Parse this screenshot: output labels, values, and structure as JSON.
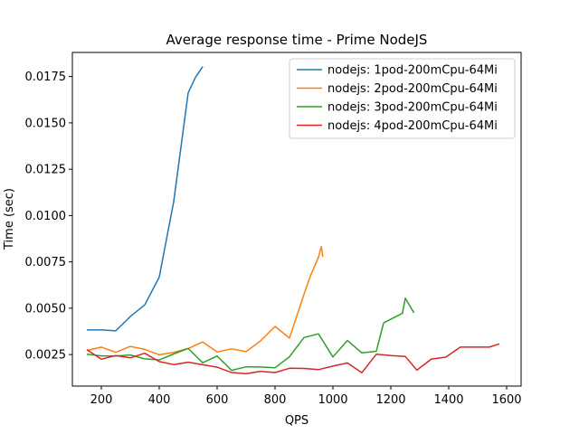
{
  "chart_data": {
    "type": "line",
    "title": "Average response time - Prime NodeJS",
    "xlabel": "QPS",
    "ylabel": "Time (sec)",
    "xlim": [
      100,
      1650
    ],
    "ylim": [
      0.0008,
      0.0188
    ],
    "xticks": [
      200,
      400,
      600,
      800,
      1000,
      1200,
      1400,
      1600
    ],
    "xtick_labels": [
      "200",
      "400",
      "600",
      "800",
      "1000",
      "1200",
      "1400",
      "1600"
    ],
    "yticks": [
      0.0025,
      0.005,
      0.0075,
      0.01,
      0.0125,
      0.015,
      0.0175
    ],
    "ytick_labels": [
      "0.0025",
      "0.0050",
      "0.0075",
      "0.0100",
      "0.0125",
      "0.0150",
      "0.0175"
    ],
    "grid": false,
    "legend_position": "top-right",
    "series": [
      {
        "name": "nodejs: 1pod-200mCpu-64Mi",
        "color": "#1f77b4",
        "x": [
          150,
          200,
          250,
          300,
          350,
          400,
          450,
          500,
          525,
          550
        ],
        "y": [
          0.00383,
          0.00383,
          0.00378,
          0.00455,
          0.00518,
          0.00668,
          0.01075,
          0.01662,
          0.01745,
          0.01803
        ]
      },
      {
        "name": "nodejs: 2pod-200mCpu-64Mi",
        "color": "#ff7f0e",
        "x": [
          150,
          200,
          250,
          300,
          350,
          400,
          450,
          500,
          550,
          600,
          650,
          700,
          750,
          800,
          850,
          900,
          925,
          950,
          960,
          965
        ],
        "y": [
          0.00272,
          0.0029,
          0.00262,
          0.00294,
          0.00278,
          0.00249,
          0.00262,
          0.00283,
          0.00318,
          0.00264,
          0.00281,
          0.00266,
          0.00324,
          0.00402,
          0.00339,
          0.00575,
          0.00685,
          0.00776,
          0.00832,
          0.00778
        ]
      },
      {
        "name": "nodejs: 3pod-200mCpu-64Mi",
        "color": "#2ca02c",
        "x": [
          150,
          200,
          250,
          300,
          350,
          400,
          450,
          500,
          550,
          600,
          650,
          700,
          750,
          800,
          850,
          900,
          950,
          1000,
          1050,
          1100,
          1150,
          1175,
          1240,
          1250,
          1280
        ],
        "y": [
          0.00252,
          0.00243,
          0.00242,
          0.00248,
          0.00227,
          0.00221,
          0.00253,
          0.00283,
          0.00206,
          0.00242,
          0.00165,
          0.00184,
          0.00183,
          0.00179,
          0.00238,
          0.00342,
          0.00362,
          0.00237,
          0.00326,
          0.00259,
          0.00268,
          0.00421,
          0.00472,
          0.00554,
          0.00475
        ]
      },
      {
        "name": "nodejs: 4pod-200mCpu-64Mi",
        "color": "#d62728",
        "x": [
          150,
          200,
          250,
          300,
          350,
          400,
          450,
          500,
          550,
          600,
          650,
          700,
          750,
          800,
          850,
          900,
          950,
          1000,
          1050,
          1100,
          1150,
          1200,
          1250,
          1290,
          1340,
          1390,
          1440,
          1490,
          1540,
          1575
        ],
        "y": [
          0.00276,
          0.00225,
          0.00245,
          0.00232,
          0.00257,
          0.00212,
          0.00196,
          0.00209,
          0.00195,
          0.00182,
          0.00153,
          0.00147,
          0.00159,
          0.00153,
          0.00176,
          0.00175,
          0.00169,
          0.00188,
          0.00205,
          0.00152,
          0.00252,
          0.00245,
          0.0024,
          0.00166,
          0.00226,
          0.00236,
          0.0029,
          0.0029,
          0.0029,
          0.00308
        ]
      }
    ]
  }
}
